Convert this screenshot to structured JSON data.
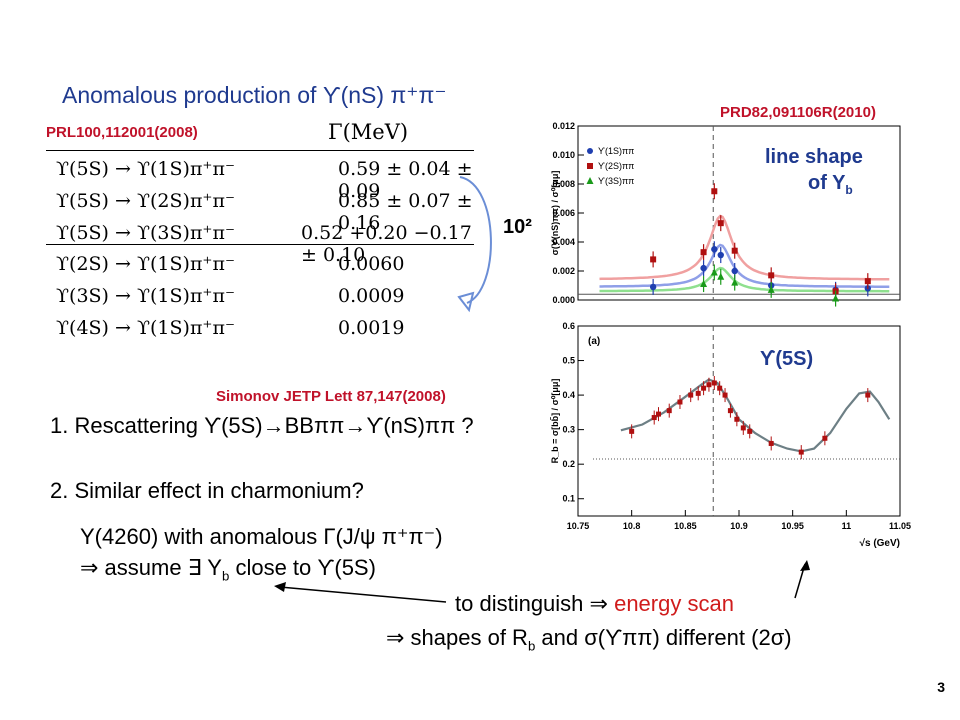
{
  "title": "Anomalous production of ϒ(nS) π⁺π⁻",
  "ref_left": "PRL100,112001(2008)",
  "ref_right": "PRD82,091106R(2010)",
  "ref_simonov": "Simonov JETP Lett 87,147(2008)",
  "table": {
    "header": "Γ(MeV)",
    "rows": [
      {
        "process": "ϒ(5S) → ϒ(1S)π⁺π⁻",
        "width": "0.59 ± 0.04 ± 0.09"
      },
      {
        "process": "ϒ(5S) → ϒ(2S)π⁺π⁻",
        "width": "0.85 ± 0.07 ± 0.16"
      },
      {
        "process": "ϒ(5S) → ϒ(3S)π⁺π⁻",
        "width": "0.52 +0.20 −0.17 ± 0.10"
      },
      {
        "process": "ϒ(2S) → ϒ(1S)π⁺π⁻",
        "width": "0.0060"
      },
      {
        "process": "ϒ(3S) → ϒ(1S)π⁺π⁻",
        "width": "0.0009"
      },
      {
        "process": "ϒ(4S) → ϒ(1S)π⁺π⁻",
        "width": "0.0019"
      }
    ]
  },
  "ratio_label": "10²",
  "line_shape_label_1": "line shape",
  "line_shape_label_2": "of Y",
  "line_shape_sub": "b",
  "y5s_label": "ϒ(5S)",
  "points": [
    "1. Rescattering ϒ(5S)→BBππ→ϒ(nS)ππ ?",
    "2. Similar effect in charmonium?"
  ],
  "y4260_line": "Y(4260) with anomalous Γ(J/ψ π⁺π⁻)",
  "assume_line": "⇒ assume ∃ Y",
  "assume_sub": "b",
  "assume_tail": " close to ϒ(5S)",
  "distinguish_prefix": "to distinguish ⇒ ",
  "distinguish_highlight": "energy scan",
  "shapes_line_a": "⇒ shapes of R",
  "shapes_sub": "b",
  "shapes_line_b": " and σ(ϒππ) different (2σ)",
  "page_number": "3",
  "plot_top": {
    "ylabel": "σ(ϒ(nS)ππ) / σ⁰[μμ]",
    "yticks": [
      "0.000",
      "0.002",
      "0.004",
      "0.006",
      "0.008",
      "0.010",
      "0.012"
    ],
    "legend": [
      "ϒ(1S)ππ",
      "ϒ(2S)ππ",
      "ϒ(3S)ππ"
    ],
    "colors": {
      "s1": "#1f3fb0",
      "s2": "#b01010",
      "s3": "#1a9a1a"
    }
  },
  "plot_bottom": {
    "ylabel": "R_b = σ[bb̄] / σ⁰[μμ]",
    "panel_tag": "(a)",
    "xlabel": "√s (GeV)",
    "yticks": [
      "0.1",
      "0.2",
      "0.3",
      "0.4",
      "0.5",
      "0.6"
    ],
    "xticks": [
      "10.75",
      "10.8",
      "10.85",
      "10.9",
      "10.95",
      "11",
      "11.05"
    ]
  },
  "chart_data": [
    {
      "type": "scatter",
      "ylabel": "σ(ϒ(nS)ππ) / σ⁰[μμ]",
      "ylim": [
        0.0,
        0.012
      ],
      "xlim": [
        10.75,
        11.05
      ],
      "series": [
        {
          "name": "ϒ(1S)ππ",
          "x": [
            10.82,
            10.867,
            10.877,
            10.883,
            10.896,
            10.93,
            10.99,
            11.02
          ],
          "y": [
            0.0009,
            0.0022,
            0.0035,
            0.0031,
            0.002,
            0.001,
            0.0007,
            0.0008
          ]
        },
        {
          "name": "ϒ(2S)ππ",
          "x": [
            10.82,
            10.867,
            10.877,
            10.883,
            10.896,
            10.93,
            10.99,
            11.02
          ],
          "y": [
            0.0028,
            0.0033,
            0.0075,
            0.0053,
            0.0034,
            0.0017,
            0.0006,
            0.0013
          ]
        },
        {
          "name": "ϒ(3S)ππ",
          "x": [
            10.867,
            10.877,
            10.883,
            10.896,
            10.93,
            10.99
          ],
          "y": [
            0.0011,
            0.0019,
            0.0016,
            0.0012,
            0.0007,
            0.0001
          ]
        }
      ]
    },
    {
      "type": "scatter",
      "title": "(a)",
      "xlabel": "√s (GeV)",
      "ylabel": "R_b = σ[bb̄] / σ⁰[μμ]",
      "xlim": [
        10.75,
        11.05
      ],
      "ylim": [
        0.05,
        0.6
      ],
      "x": [
        10.8,
        10.821,
        10.825,
        10.835,
        10.845,
        10.855,
        10.862,
        10.867,
        10.872,
        10.877,
        10.882,
        10.887,
        10.892,
        10.898,
        10.904,
        10.91,
        10.93,
        10.958,
        10.98,
        11.02
      ],
      "y": [
        0.295,
        0.335,
        0.345,
        0.355,
        0.38,
        0.4,
        0.405,
        0.42,
        0.43,
        0.435,
        0.42,
        0.4,
        0.355,
        0.33,
        0.305,
        0.295,
        0.26,
        0.235,
        0.275,
        0.4
      ]
    }
  ]
}
